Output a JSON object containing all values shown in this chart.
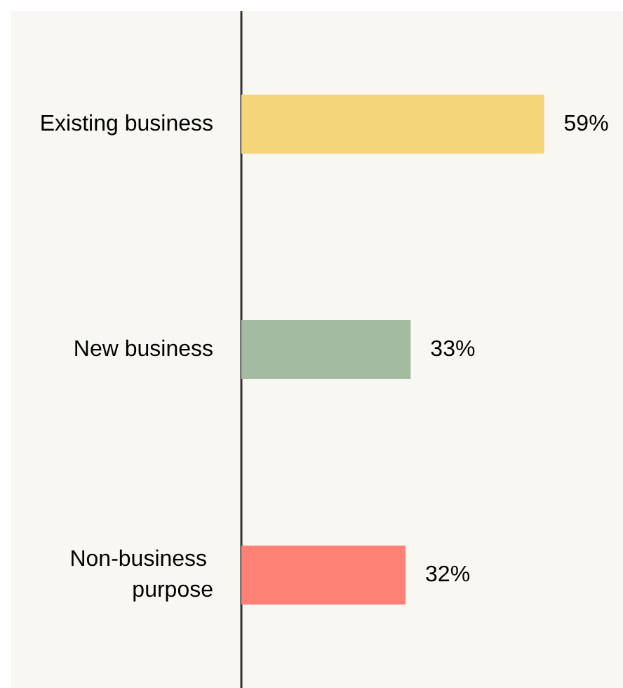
{
  "chart_data": {
    "type": "bar",
    "orientation": "horizontal",
    "categories": [
      "Existing business",
      "New business",
      "Non-business purpose"
    ],
    "values": [
      59,
      33,
      32
    ],
    "colors": [
      "#f3d57a",
      "#a3bba0",
      "#ff8075"
    ],
    "value_labels": [
      "59%",
      "33%",
      "32%"
    ]
  }
}
